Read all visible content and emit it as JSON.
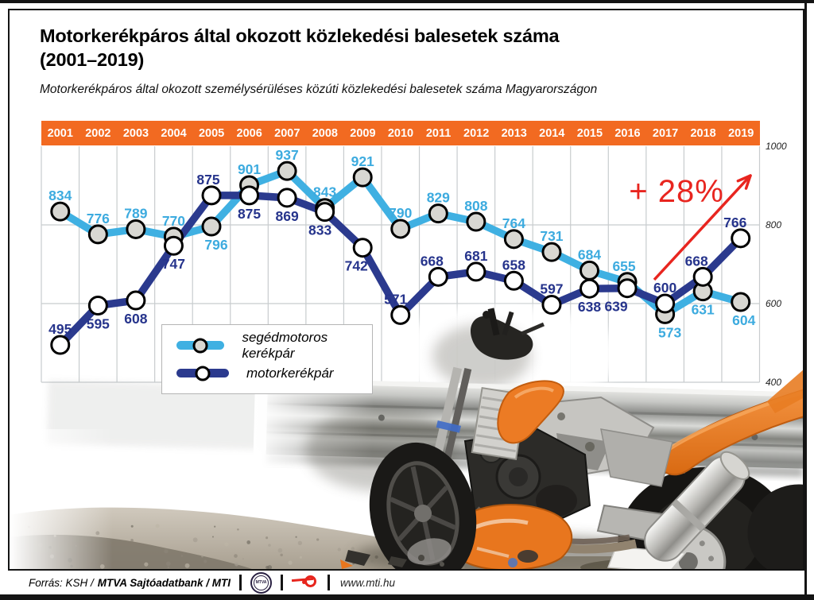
{
  "header": {
    "title_line1": "Motorkerékpáros által okozott közlekedési balesetek száma",
    "title_line2": "(2001–2019)",
    "subtitle": "Motorkerékpáros által okozott személysérüléses közúti közlekedési balesetek száma Magyarországon"
  },
  "chart_data": {
    "type": "line",
    "categories": [
      "2001",
      "2002",
      "2003",
      "2004",
      "2005",
      "2006",
      "2007",
      "2008",
      "2009",
      "2010",
      "2011",
      "2012",
      "2013",
      "2014",
      "2015",
      "2016",
      "2017",
      "2018",
      "2019"
    ],
    "series": [
      {
        "name": "segédmotoros kerékpár",
        "color": "#3fb0e2",
        "marker_fill": "#d8d7d2",
        "values": [
          834,
          776,
          789,
          770,
          796,
          901,
          937,
          843,
          921,
          790,
          829,
          808,
          764,
          731,
          684,
          655,
          573,
          631,
          604
        ],
        "label_pos": [
          "above",
          "above",
          "above",
          "above",
          "below",
          "above",
          "above",
          "above",
          "above",
          "above",
          "above",
          "above",
          "above",
          "above",
          "above",
          "above",
          "below",
          "below",
          "below"
        ],
        "label_dx": [
          0,
          0,
          0,
          0,
          6,
          0,
          0,
          0,
          0,
          0,
          0,
          0,
          0,
          0,
          0,
          -4,
          6,
          0,
          4
        ]
      },
      {
        "name": "motorkerékpár",
        "color": "#2b3a8e",
        "marker_fill": "#ffffff",
        "values": [
          495,
          595,
          608,
          747,
          875,
          875,
          869,
          833,
          742,
          571,
          668,
          681,
          658,
          597,
          638,
          639,
          600,
          668,
          766
        ],
        "label_pos": [
          "above",
          "below",
          "below",
          "below",
          "above",
          "below",
          "below",
          "below",
          "below",
          "above",
          "above",
          "above",
          "above",
          "above",
          "below",
          "below",
          "above",
          "above",
          "above"
        ],
        "label_dx": [
          0,
          0,
          0,
          0,
          -4,
          0,
          0,
          -6,
          -8,
          -6,
          -8,
          0,
          0,
          0,
          0,
          -14,
          0,
          -8,
          -7
        ]
      }
    ],
    "ylim": [
      400,
      1000
    ],
    "yticks": [
      1000,
      800,
      600,
      400
    ],
    "grid": true,
    "legend_position": "inside-bottom-left",
    "annotation": {
      "text": "+ 28%",
      "color": "#e8251f"
    }
  },
  "axis": {
    "right_labels": [
      "1000",
      "800",
      "600",
      "400"
    ]
  },
  "footer": {
    "source_normal": "Forrás: KSH /",
    "source_bold": "MTVA Sajtóadatbank / MTI",
    "mtva_logo_text": "MTVA",
    "website": "www.mti.hu"
  },
  "colors": {
    "year_bar": "#f26a21",
    "grid": "#c8ccce",
    "annotation_red": "#e8251f",
    "label_light": "#3dabdf",
    "label_dark": "#26348c",
    "title": "#000000"
  }
}
